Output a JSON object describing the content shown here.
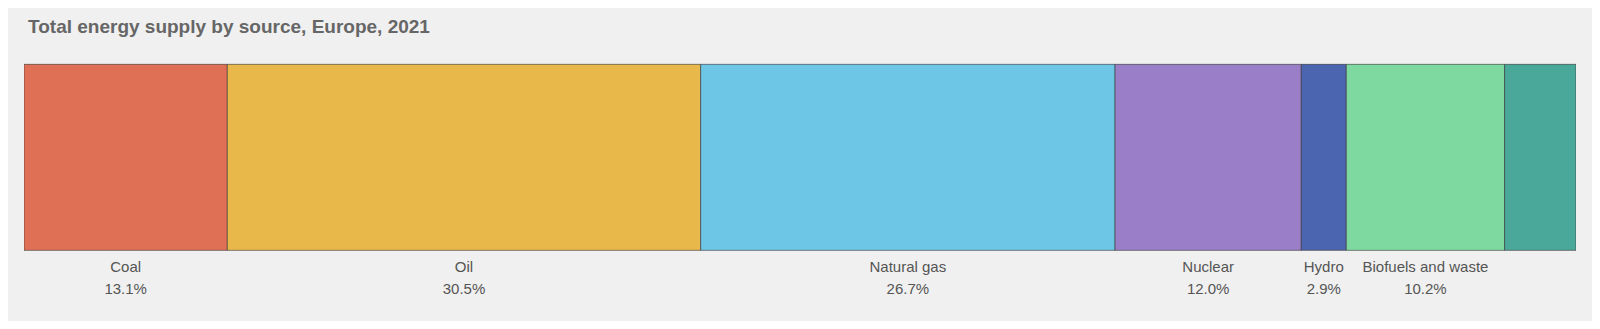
{
  "chart_data": {
    "type": "bar",
    "title": "Total energy supply by source, Europe, 2021",
    "orientation": "horizontal",
    "stacked": true,
    "categories": [
      null
    ],
    "series": [
      {
        "name": "Coal",
        "color": "#E07055",
        "values": [
          13.1
        ],
        "value_labels": [
          "13.1%"
        ]
      },
      {
        "name": "Oil",
        "color": "#E8B84B",
        "values": [
          30.5
        ],
        "value_labels": [
          "30.5%"
        ]
      },
      {
        "name": "Natural gas",
        "color": "#6EC6E6",
        "values": [
          26.7
        ],
        "value_labels": [
          "26.7%"
        ]
      },
      {
        "name": "Nuclear",
        "color": "#9B7EC8",
        "values": [
          12.0
        ],
        "value_labels": [
          "12.0%"
        ]
      },
      {
        "name": "Hydro",
        "color": "#4C65B0",
        "values": [
          2.9
        ],
        "value_labels": [
          "2.9%"
        ]
      },
      {
        "name": "Biofuels and waste",
        "color": "#7DD9A0",
        "values": [
          10.2
        ],
        "value_labels": [
          "10.2%"
        ]
      },
      {
        "name": null,
        "color": "#4AA89A",
        "values": [
          4.6
        ],
        "value_labels": [
          null
        ]
      }
    ],
    "xlim": [
      0,
      100
    ],
    "data_labels": true,
    "tick_labels": false
  }
}
